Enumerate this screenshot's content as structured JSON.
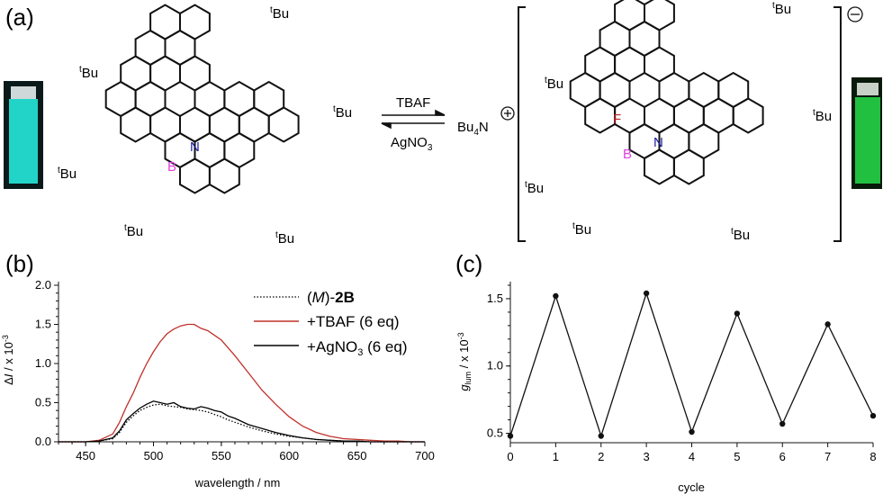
{
  "panels": {
    "a": {
      "label": "(a)",
      "reagent_forward": "TBAF",
      "reagent_reverse": "AgNO3",
      "counter_cation": "Bu4N",
      "charge_sign": "⊖",
      "tbu_label": "tBu",
      "atoms": {
        "boron": "B",
        "nitrogen": "N",
        "fluorine": "F"
      },
      "colors": {
        "boron": "#e040e0",
        "nitrogen": "#1a1aa0",
        "fluorine": "#c02020",
        "vial_left": "#22d4c8",
        "vial_right": "#22c040"
      }
    },
    "b": {
      "label": "(b)",
      "legend": [
        {
          "key": "M2B",
          "text_open": "(",
          "text_italic": "M",
          "text_mid": ")-",
          "text_bold": "2B"
        },
        {
          "key": "TBAF",
          "text": "+TBAF (6 eq)"
        },
        {
          "key": "AgNO3",
          "text": "+AgNO3 (6 eq)"
        }
      ]
    },
    "c": {
      "label": "(c)"
    }
  },
  "chart_data": [
    {
      "type": "line",
      "panel": "b",
      "xlabel": "wavelength / nm",
      "ylabel": "ΔI / x 10-3",
      "xlim": [
        430,
        700
      ],
      "ylim": [
        0,
        2.0
      ],
      "xticks": [
        450,
        500,
        550,
        600,
        650,
        700
      ],
      "yticks": [
        0.0,
        0.5,
        1.0,
        1.5,
        2.0
      ],
      "ytick_labels": [
        "0.0",
        "0.5",
        "1.0",
        "1.5",
        "2.0"
      ],
      "grid": false,
      "legend_position": "top-right",
      "x": [
        430,
        450,
        460,
        470,
        475,
        480,
        485,
        490,
        495,
        500,
        505,
        510,
        515,
        520,
        525,
        530,
        535,
        540,
        545,
        550,
        555,
        560,
        570,
        580,
        590,
        600,
        610,
        620,
        630,
        640,
        650,
        660,
        670,
        680,
        690,
        700
      ],
      "series": [
        {
          "name": "(M)-2B",
          "style": "dotted",
          "color": "#000000",
          "values": [
            0,
            0,
            0.01,
            0.04,
            0.12,
            0.25,
            0.33,
            0.4,
            0.44,
            0.47,
            0.48,
            0.46,
            0.45,
            0.44,
            0.42,
            0.41,
            0.4,
            0.38,
            0.35,
            0.32,
            0.28,
            0.25,
            0.19,
            0.14,
            0.1,
            0.07,
            0.05,
            0.03,
            0.02,
            0.01,
            0.01,
            0,
            0,
            0,
            0,
            0
          ]
        },
        {
          "name": "+TBAF (6 eq)",
          "style": "solid",
          "color": "#c0302a",
          "values": [
            0,
            0,
            0.02,
            0.1,
            0.25,
            0.45,
            0.62,
            0.82,
            1.0,
            1.15,
            1.28,
            1.38,
            1.44,
            1.48,
            1.5,
            1.5,
            1.45,
            1.42,
            1.36,
            1.3,
            1.2,
            1.1,
            0.88,
            0.66,
            0.48,
            0.32,
            0.2,
            0.12,
            0.07,
            0.04,
            0.03,
            0.02,
            0.01,
            0.01,
            0,
            0
          ]
        },
        {
          "name": "+AgNO3 (6 eq)",
          "style": "solid",
          "color": "#000000",
          "values": [
            0,
            0,
            0.01,
            0.05,
            0.14,
            0.28,
            0.36,
            0.43,
            0.48,
            0.52,
            0.5,
            0.48,
            0.5,
            0.45,
            0.43,
            0.42,
            0.45,
            0.43,
            0.4,
            0.38,
            0.33,
            0.3,
            0.22,
            0.17,
            0.12,
            0.08,
            0.05,
            0.03,
            0.02,
            0.01,
            0.01,
            0,
            0,
            0,
            0,
            0
          ]
        }
      ]
    },
    {
      "type": "line",
      "panel": "c",
      "xlabel": "cycle",
      "ylabel": "glum / x 10-3",
      "xlim": [
        0,
        8
      ],
      "ylim": [
        0.43,
        1.6
      ],
      "xticks": [
        0,
        1,
        2,
        3,
        4,
        5,
        6,
        7,
        8
      ],
      "yticks": [
        0.5,
        1.0,
        1.5
      ],
      "ytick_labels": [
        "0.5",
        "1.0",
        "1.5"
      ],
      "grid": false,
      "x": [
        0,
        1,
        2,
        3,
        4,
        5,
        6,
        7,
        8
      ],
      "series": [
        {
          "name": "",
          "values": [
            0.48,
            1.52,
            0.48,
            1.54,
            0.51,
            1.39,
            0.57,
            1.31,
            0.63
          ]
        }
      ]
    }
  ]
}
